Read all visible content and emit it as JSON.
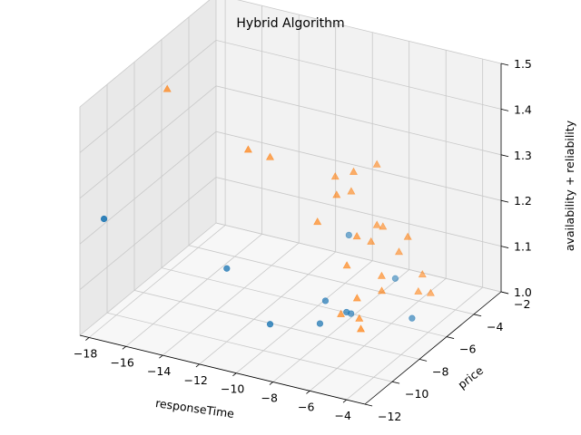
{
  "chart_data": {
    "type": "scatter",
    "projection": "3d",
    "title": "Hybrid Algorithm",
    "xlabel": "responseTime",
    "ylabel": "price",
    "zlabel": "availability + reliability",
    "xlim": [
      -18.5,
      -3
    ],
    "ylim": [
      -12,
      -2
    ],
    "zlim": [
      1.0,
      1.5
    ],
    "xticks": [
      -18,
      -16,
      -14,
      -12,
      -10,
      -8,
      -6,
      -4
    ],
    "yticks": [
      -12,
      -10,
      -8,
      -6,
      -4,
      -2
    ],
    "zticks": [
      1.0,
      1.1,
      1.2,
      1.3,
      1.4,
      1.5
    ],
    "grid": true,
    "legend": "none",
    "colors": {
      "series_1": "#1f77b4",
      "series_2": "#ff7f0e",
      "pane_side": "#e9e9e9",
      "pane_back": "#f2f2f2",
      "pane_floor": "#f7f7f7",
      "grid": "#c8c8c8"
    },
    "series": [
      {
        "marker": "circle",
        "points": [
          {
            "x": -18.3,
            "y": -10.5,
            "z": 1.22
          },
          {
            "x": -13.4,
            "y": -8.1,
            "z": 1.1
          },
          {
            "x": -9.5,
            "y": -4.4,
            "z": 1.12
          },
          {
            "x": -10.6,
            "y": -8.7,
            "z": 1.02
          },
          {
            "x": -7.2,
            "y": -4.1,
            "z": 1.04
          },
          {
            "x": -8.0,
            "y": -6.6,
            "z": 1.02
          },
          {
            "x": -9.0,
            "y": -7.2,
            "z": 1.0
          },
          {
            "x": -8.2,
            "y": -6.0,
            "z": 1.0
          },
          {
            "x": -9.0,
            "y": -6.8,
            "z": 1.04
          },
          {
            "x": -5.4,
            "y": -5.3,
            "z": 1.0
          }
        ]
      },
      {
        "marker": "triangle",
        "points": [
          {
            "x": -17.6,
            "y": -6.8,
            "z": 1.42
          },
          {
            "x": -12.6,
            "y": -6.0,
            "z": 1.3
          },
          {
            "x": -13.2,
            "y": -6.8,
            "z": 1.33
          },
          {
            "x": -9.8,
            "y": -5.0,
            "z": 1.26
          },
          {
            "x": -9.5,
            "y": -5.3,
            "z": 1.23
          },
          {
            "x": -8.8,
            "y": -5.0,
            "z": 1.28
          },
          {
            "x": -8.2,
            "y": -4.1,
            "z": 1.28
          },
          {
            "x": -10.1,
            "y": -5.9,
            "z": 1.18
          },
          {
            "x": -7.9,
            "y": -4.5,
            "z": 1.16
          },
          {
            "x": -6.0,
            "y": -4.8,
            "z": 1.16
          },
          {
            "x": -7.8,
            "y": -4.2,
            "z": 1.15
          },
          {
            "x": -8.4,
            "y": -5.3,
            "z": 1.15
          },
          {
            "x": -8.0,
            "y": -4.8,
            "z": 1.13
          },
          {
            "x": -7.0,
            "y": -4.1,
            "z": 1.1
          },
          {
            "x": -8.5,
            "y": -5.9,
            "z": 1.1
          },
          {
            "x": -7.8,
            "y": -6.1,
            "z": 1.04
          },
          {
            "x": -7.2,
            "y": -5.1,
            "z": 1.07
          },
          {
            "x": -6.9,
            "y": -5.5,
            "z": 1.05
          },
          {
            "x": -5.8,
            "y": -4.0,
            "z": 1.06
          },
          {
            "x": -5.8,
            "y": -4.3,
            "z": 1.03
          },
          {
            "x": -5.2,
            "y": -4.2,
            "z": 1.03
          },
          {
            "x": -7.6,
            "y": -6.2,
            "z": 1.0
          },
          {
            "x": -8.6,
            "y": -6.2,
            "z": 1.0
          },
          {
            "x": -7.0,
            "y": -6.9,
            "z": 1.0
          },
          {
            "x": -9.3,
            "y": -4.5,
            "z": 1.22
          }
        ]
      }
    ]
  }
}
